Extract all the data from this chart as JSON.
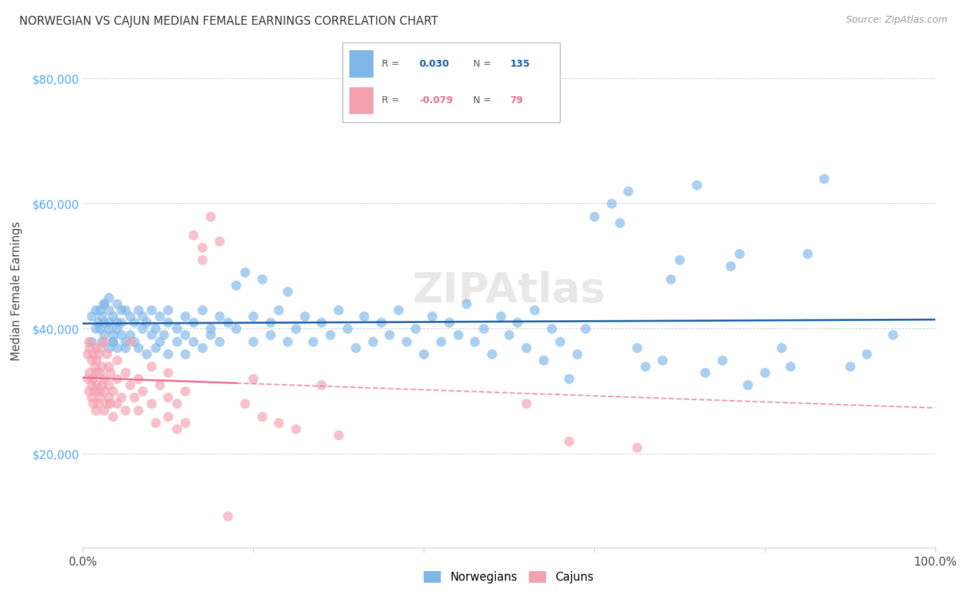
{
  "title": "NORWEGIAN VS CAJUN MEDIAN FEMALE EARNINGS CORRELATION CHART",
  "source_text": "Source: ZipAtlas.com",
  "ylabel": "Median Female Earnings",
  "legend_norwegian": "Norwegians",
  "legend_cajun": "Cajuns",
  "r_norwegian": 0.03,
  "n_norwegian": 135,
  "r_cajun": -0.079,
  "n_cajun": 79,
  "ylim_min": 5000,
  "ylim_max": 87000,
  "xlim_min": 0.0,
  "xlim_max": 1.0,
  "yticks": [
    20000,
    40000,
    60000,
    80000
  ],
  "ytick_labels": [
    "$20,000",
    "$40,000",
    "$60,000",
    "$80,000"
  ],
  "xticks": [
    0.0,
    0.2,
    0.4,
    0.6,
    0.8,
    1.0
  ],
  "color_norwegian": "#7EB6E8",
  "color_cajun": "#F4A0B0",
  "color_line_norwegian": "#1A5FA8",
  "color_line_cajun": "#E87090",
  "color_ytick_labels": "#4da6ff",
  "background_color": "#ffffff",
  "watermark_text": "ZIPAtlas",
  "norwegian_x": [
    0.01,
    0.01,
    0.015,
    0.015,
    0.018,
    0.02,
    0.02,
    0.022,
    0.022,
    0.025,
    0.025,
    0.025,
    0.03,
    0.03,
    0.03,
    0.03,
    0.035,
    0.035,
    0.035,
    0.04,
    0.04,
    0.04,
    0.045,
    0.045,
    0.05,
    0.05,
    0.05,
    0.055,
    0.055,
    0.06,
    0.06,
    0.065,
    0.065,
    0.07,
    0.07,
    0.075,
    0.075,
    0.08,
    0.08,
    0.085,
    0.085,
    0.09,
    0.09,
    0.095,
    0.1,
    0.1,
    0.1,
    0.11,
    0.11,
    0.12,
    0.12,
    0.12,
    0.13,
    0.13,
    0.14,
    0.14,
    0.15,
    0.15,
    0.16,
    0.16,
    0.17,
    0.18,
    0.18,
    0.19,
    0.2,
    0.2,
    0.21,
    0.22,
    0.22,
    0.23,
    0.24,
    0.24,
    0.25,
    0.26,
    0.27,
    0.28,
    0.29,
    0.3,
    0.31,
    0.32,
    0.33,
    0.34,
    0.35,
    0.36,
    0.37,
    0.38,
    0.39,
    0.4,
    0.41,
    0.42,
    0.43,
    0.44,
    0.45,
    0.46,
    0.47,
    0.48,
    0.49,
    0.5,
    0.51,
    0.52,
    0.53,
    0.54,
    0.55,
    0.56,
    0.57,
    0.58,
    0.59,
    0.6,
    0.62,
    0.63,
    0.64,
    0.65,
    0.66,
    0.68,
    0.69,
    0.7,
    0.72,
    0.73,
    0.75,
    0.76,
    0.77,
    0.78,
    0.8,
    0.82,
    0.83,
    0.85,
    0.87,
    0.9,
    0.92,
    0.95,
    0.025,
    0.03,
    0.035,
    0.04,
    0.045
  ],
  "norwegian_y": [
    42000,
    38000,
    40000,
    43000,
    41000,
    40000,
    43000,
    38000,
    42000,
    39000,
    44000,
    41000,
    43000,
    37000,
    40000,
    45000,
    38000,
    42000,
    39000,
    41000,
    44000,
    37000,
    39000,
    41000,
    38000,
    43000,
    37000,
    39000,
    42000,
    38000,
    41000,
    43000,
    37000,
    40000,
    42000,
    36000,
    41000,
    39000,
    43000,
    37000,
    40000,
    38000,
    42000,
    39000,
    41000,
    36000,
    43000,
    38000,
    40000,
    39000,
    42000,
    36000,
    41000,
    38000,
    43000,
    37000,
    40000,
    39000,
    38000,
    42000,
    41000,
    47000,
    40000,
    49000,
    38000,
    42000,
    48000,
    39000,
    41000,
    43000,
    38000,
    46000,
    40000,
    42000,
    38000,
    41000,
    39000,
    43000,
    40000,
    37000,
    42000,
    38000,
    41000,
    39000,
    43000,
    38000,
    40000,
    36000,
    42000,
    38000,
    41000,
    39000,
    44000,
    38000,
    40000,
    36000,
    42000,
    39000,
    41000,
    37000,
    43000,
    35000,
    40000,
    38000,
    32000,
    36000,
    40000,
    58000,
    60000,
    57000,
    62000,
    37000,
    34000,
    35000,
    48000,
    51000,
    63000,
    33000,
    35000,
    50000,
    52000,
    31000,
    33000,
    37000,
    34000,
    52000,
    64000,
    34000,
    36000,
    39000,
    44000,
    41000,
    38000,
    40000,
    43000
  ],
  "cajun_x": [
    0.005,
    0.005,
    0.007,
    0.007,
    0.008,
    0.008,
    0.01,
    0.01,
    0.01,
    0.012,
    0.012,
    0.012,
    0.014,
    0.014,
    0.015,
    0.015,
    0.015,
    0.016,
    0.016,
    0.018,
    0.018,
    0.018,
    0.02,
    0.02,
    0.02,
    0.022,
    0.022,
    0.025,
    0.025,
    0.025,
    0.025,
    0.028,
    0.028,
    0.03,
    0.03,
    0.03,
    0.032,
    0.032,
    0.035,
    0.035,
    0.04,
    0.04,
    0.04,
    0.045,
    0.05,
    0.05,
    0.055,
    0.055,
    0.06,
    0.065,
    0.065,
    0.07,
    0.08,
    0.08,
    0.085,
    0.09,
    0.1,
    0.1,
    0.1,
    0.11,
    0.11,
    0.12,
    0.12,
    0.13,
    0.14,
    0.14,
    0.15,
    0.16,
    0.17,
    0.19,
    0.2,
    0.21,
    0.23,
    0.25,
    0.28,
    0.3,
    0.52,
    0.57,
    0.65
  ],
  "cajun_y": [
    36000,
    32000,
    38000,
    30000,
    37000,
    33000,
    35000,
    31000,
    29000,
    36000,
    32000,
    28000,
    34000,
    30000,
    37000,
    33000,
    27000,
    35000,
    31000,
    36000,
    30000,
    28000,
    37000,
    33000,
    29000,
    34000,
    31000,
    38000,
    32000,
    30000,
    27000,
    36000,
    28000,
    34000,
    31000,
    29000,
    33000,
    28000,
    30000,
    26000,
    32000,
    28000,
    35000,
    29000,
    33000,
    27000,
    31000,
    38000,
    29000,
    32000,
    27000,
    30000,
    34000,
    28000,
    25000,
    31000,
    33000,
    29000,
    26000,
    28000,
    24000,
    30000,
    25000,
    55000,
    51000,
    53000,
    58000,
    54000,
    10000,
    28000,
    32000,
    26000,
    25000,
    24000,
    31000,
    23000,
    28000,
    22000,
    21000
  ]
}
